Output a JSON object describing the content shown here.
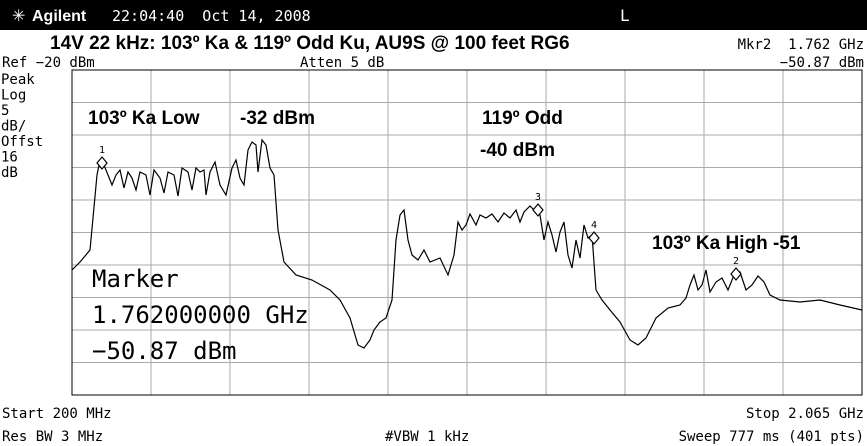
{
  "header": {
    "brand": "Agilent",
    "datetime": "22:04:40  Oct 14, 2008",
    "indicator": "L"
  },
  "title": "14V 22 kHz: 103º Ka & 119º Odd Ku, AU9S @ 100 feet RG6",
  "marker_readout": {
    "frequency": "Mkr2  1.762 GHz",
    "level": "−50.87 dBm"
  },
  "ref": "Ref −20 dBm",
  "atten": "Atten 5 dB",
  "left_labels": [
    "Peak",
    "Log",
    "5",
    "dB/",
    "Offst",
    "16",
    "dB"
  ],
  "annotations": [
    "103º Ka Low",
    "-32 dBm",
    "119º Odd",
    "-40 dBm",
    "103º Ka High -51"
  ],
  "marker_box": [
    "Marker",
    "1.762000000 GHz",
    "−50.87 dBm"
  ],
  "markers": [
    "1",
    "2",
    "3",
    "4"
  ],
  "footer": {
    "start": "Start 200 MHz",
    "stop": "Stop 2.065 GHz",
    "res_bw": "Res BW 3 MHz",
    "vbw": "#VBW 1 kHz",
    "sweep": "Sweep 777 ms (401 pts)"
  }
}
